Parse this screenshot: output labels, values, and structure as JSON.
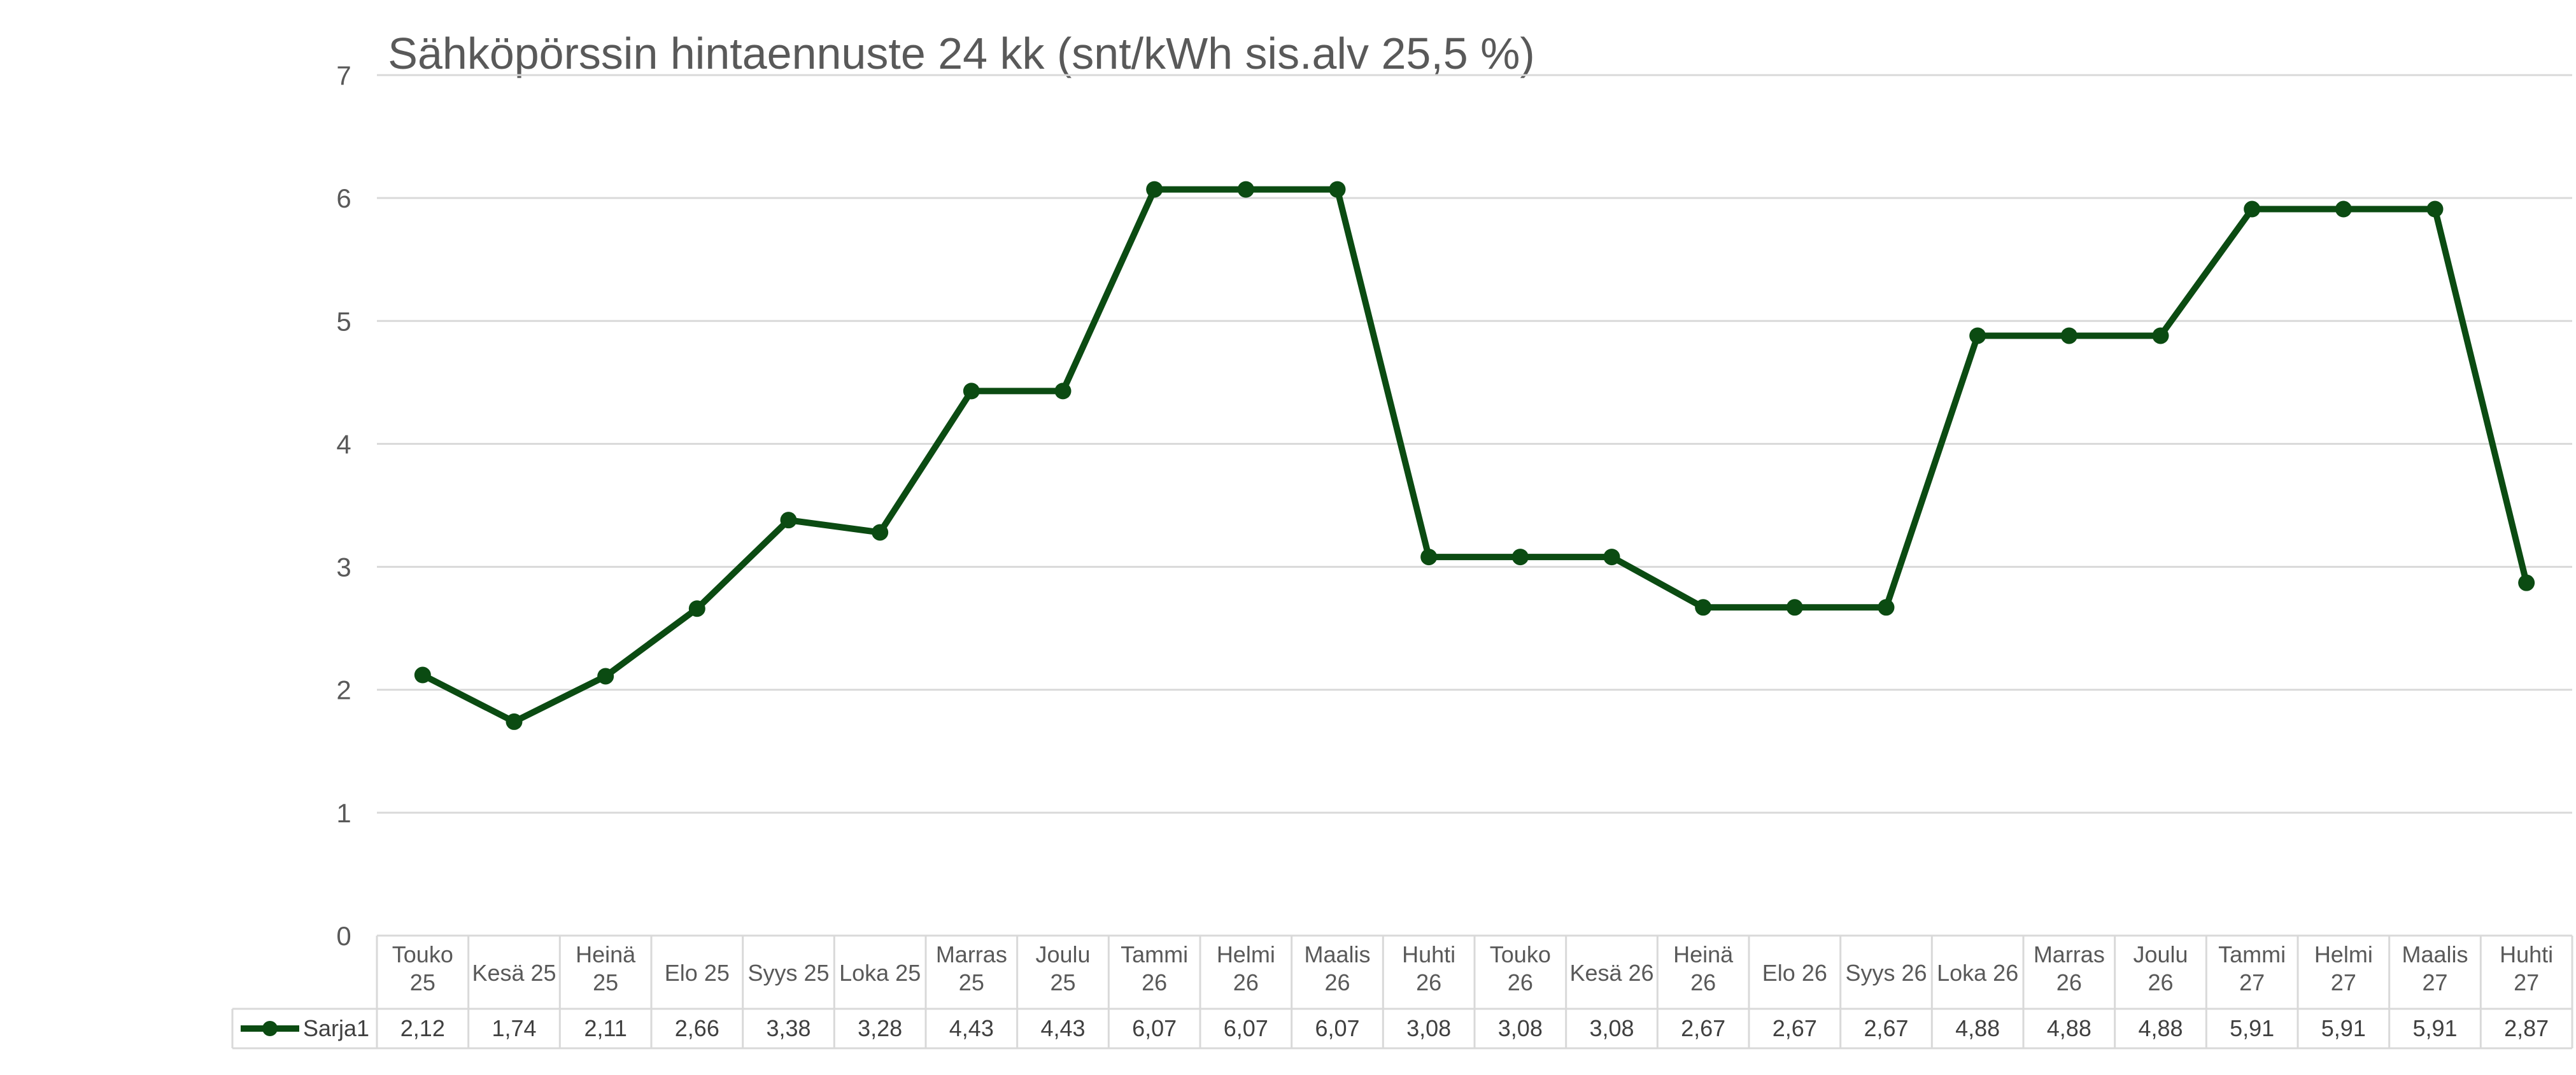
{
  "chart_data": {
    "type": "line",
    "title": "Sähköpörssin hintaennuste 24 kk (snt/kWh sis.alv 25,5 %)",
    "categories": [
      [
        "Touko",
        "25"
      ],
      [
        "Kesä 25"
      ],
      [
        "Heinä",
        "25"
      ],
      [
        "Elo 25"
      ],
      [
        "Syys 25"
      ],
      [
        "Loka 25"
      ],
      [
        "Marras",
        "25"
      ],
      [
        "Joulu",
        "25"
      ],
      [
        "Tammi",
        "26"
      ],
      [
        "Helmi",
        "26"
      ],
      [
        "Maalis",
        "26"
      ],
      [
        "Huhti",
        "26"
      ],
      [
        "Touko",
        "26"
      ],
      [
        "Kesä 26"
      ],
      [
        "Heinä",
        "26"
      ],
      [
        "Elo 26"
      ],
      [
        "Syys 26"
      ],
      [
        "Loka 26"
      ],
      [
        "Marras",
        "26"
      ],
      [
        "Joulu",
        "26"
      ],
      [
        "Tammi",
        "27"
      ],
      [
        "Helmi",
        "27"
      ],
      [
        "Maalis",
        "27"
      ],
      [
        "Huhti",
        "27"
      ]
    ],
    "series": [
      {
        "name": "Sarja1",
        "color": "#0b4b12",
        "values": [
          2.12,
          1.74,
          2.11,
          2.66,
          3.38,
          3.28,
          4.43,
          4.43,
          6.07,
          6.07,
          6.07,
          3.08,
          3.08,
          3.08,
          2.67,
          2.67,
          2.67,
          4.88,
          4.88,
          4.88,
          5.91,
          5.91,
          5.91,
          2.87
        ],
        "labels": [
          "2,12",
          "1,74",
          "2,11",
          "2,66",
          "3,38",
          "3,28",
          "4,43",
          "4,43",
          "6,07",
          "6,07",
          "6,07",
          "3,08",
          "3,08",
          "3,08",
          "2,67",
          "2,67",
          "2,67",
          "4,88",
          "4,88",
          "4,88",
          "5,91",
          "5,91",
          "5,91",
          "2,87"
        ]
      }
    ],
    "ylim": [
      0,
      7
    ],
    "yticks": [
      0,
      1,
      2,
      3,
      4,
      5,
      6,
      7
    ],
    "grid": true,
    "legend": "data-table"
  }
}
